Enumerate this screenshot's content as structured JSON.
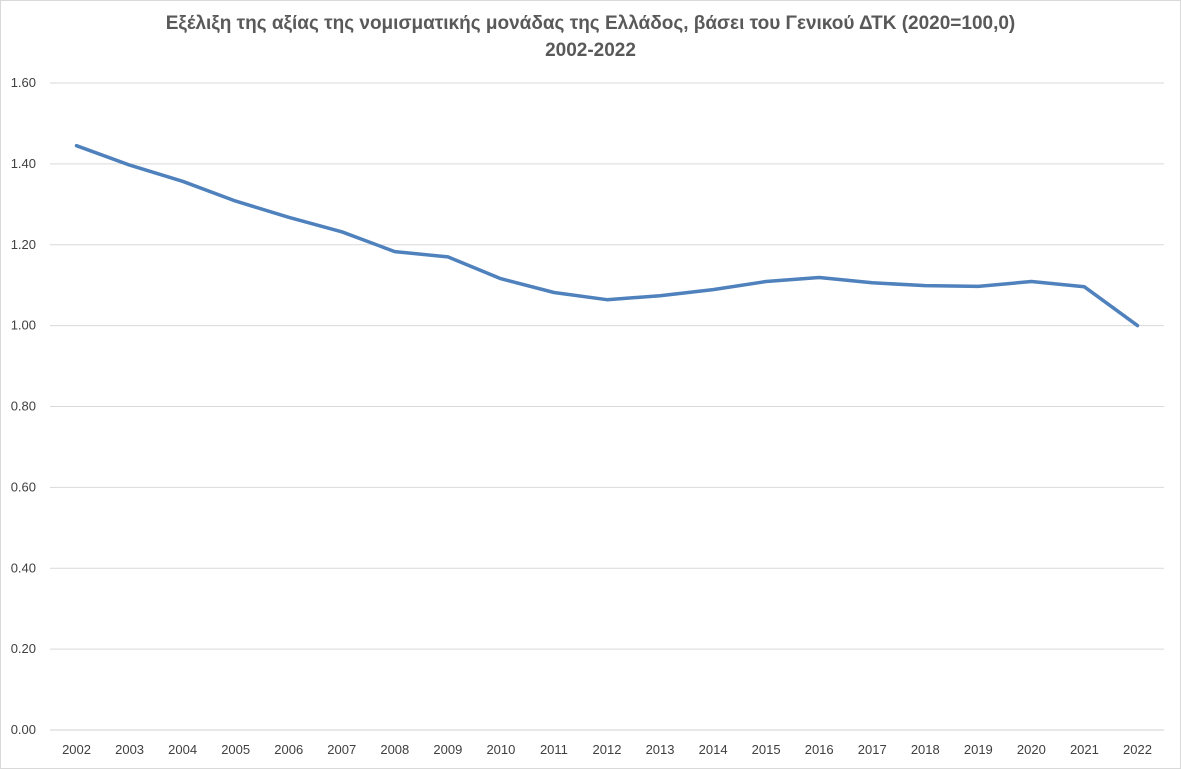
{
  "chart_data": {
    "type": "line",
    "title": "Εξέλιξη της αξίας της νομισματικής μονάδας της Ελλάδος, βάσει του Γενικού ΔΤΚ (2020=100,0)",
    "subtitle": "2002-2022",
    "xlabel": "",
    "ylabel": "",
    "ylim": [
      0,
      1.6
    ],
    "yticks": [
      "0.00",
      "0.20",
      "0.40",
      "0.60",
      "0.80",
      "1.00",
      "1.20",
      "1.40",
      "1.60"
    ],
    "grid": true,
    "legend": "none",
    "categories": [
      "2002",
      "2003",
      "2004",
      "2005",
      "2006",
      "2007",
      "2008",
      "2009",
      "2010",
      "2011",
      "2012",
      "2013",
      "2014",
      "2015",
      "2016",
      "2017",
      "2018",
      "2019",
      "2020",
      "2021",
      "2022"
    ],
    "series": [
      {
        "color": "#4f81bd",
        "values": [
          1.445,
          1.397,
          1.357,
          1.308,
          1.268,
          1.232,
          1.183,
          1.17,
          1.116,
          1.082,
          1.064,
          1.074,
          1.089,
          1.109,
          1.119,
          1.106,
          1.099,
          1.097,
          1.109,
          1.096,
          1.0
        ]
      }
    ]
  }
}
